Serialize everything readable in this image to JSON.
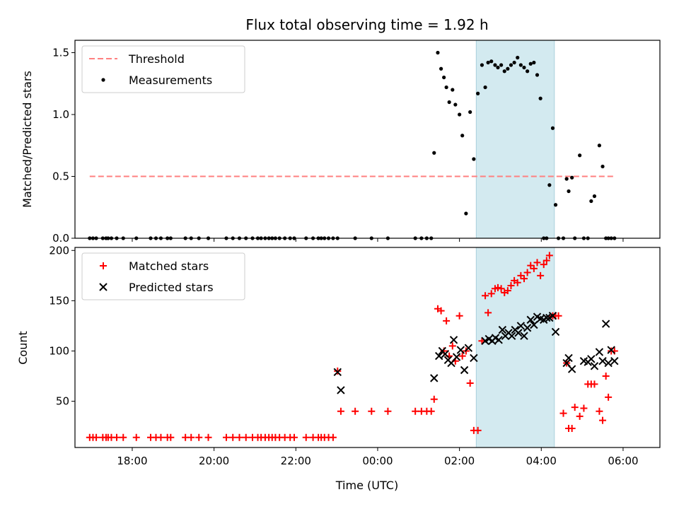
{
  "chart_data": [
    {
      "type": "scatter",
      "title": "Flux total observing time = 1.92 h",
      "ylabel": "Matched/Predicted stars",
      "xlabel": "",
      "xlim": [
        16.6,
        30.9
      ],
      "ylim": [
        0,
        1.6
      ],
      "yticks": [
        "0.0",
        "0.5",
        "1.0",
        "1.5"
      ],
      "ytick_values": [
        0,
        0.5,
        1.0,
        1.5
      ],
      "highlight": {
        "from": 26.41,
        "to": 28.32,
        "color": "#d3eaf0"
      },
      "legend": "top-left",
      "series": [
        {
          "name": "Threshold",
          "style": "dashed-line",
          "color": "#ff8080",
          "x": [
            16.96,
            29.82
          ],
          "y": [
            0.5,
            0.5
          ]
        },
        {
          "name": "Measurements",
          "style": "dot",
          "color": "#000000",
          "x": [
            16.96,
            17.04,
            17.12,
            17.28,
            17.36,
            17.41,
            17.49,
            17.62,
            17.78,
            18.1,
            18.45,
            18.58,
            18.7,
            18.86,
            18.94,
            19.3,
            19.44,
            19.63,
            19.86,
            20.3,
            20.46,
            20.62,
            20.78,
            20.94,
            21.07,
            21.15,
            21.25,
            21.34,
            21.42,
            21.5,
            21.6,
            21.73,
            21.86,
            21.96,
            22.25,
            22.42,
            22.55,
            22.62,
            22.7,
            22.8,
            22.91,
            23.02,
            23.45,
            23.85,
            24.25,
            24.92,
            25.07,
            25.2,
            25.31,
            25.38,
            25.47,
            25.55,
            25.62,
            25.68,
            25.75,
            25.83,
            25.9,
            26.0,
            26.07,
            26.16,
            26.26,
            26.35,
            26.45,
            26.55,
            26.63,
            26.7,
            26.78,
            26.87,
            26.94,
            27.02,
            27.1,
            27.18,
            27.26,
            27.34,
            27.42,
            27.5,
            27.58,
            27.66,
            27.74,
            27.82,
            27.9,
            27.98,
            28.06,
            28.13,
            28.2,
            28.28,
            28.35,
            28.42,
            28.54,
            28.62,
            28.67,
            28.75,
            28.82,
            28.94,
            29.04,
            29.14,
            29.22,
            29.3,
            29.42,
            29.5,
            29.58,
            29.64,
            29.71,
            29.79
          ],
          "y": [
            0,
            0,
            0,
            0,
            0,
            0,
            0,
            0,
            0,
            0,
            0,
            0,
            0,
            0,
            0,
            0,
            0,
            0,
            0,
            0,
            0,
            0,
            0,
            0,
            0,
            0,
            0,
            0,
            0,
            0,
            0,
            0,
            0,
            0,
            0,
            0,
            0,
            0,
            0,
            0,
            0,
            0,
            0,
            0,
            0,
            0,
            0,
            0,
            0,
            0.69,
            1.5,
            1.37,
            1.3,
            1.22,
            1.1,
            1.2,
            1.08,
            1.0,
            0.83,
            0.2,
            1.02,
            0.64,
            1.17,
            1.4,
            1.22,
            1.42,
            1.43,
            1.4,
            1.38,
            1.4,
            1.35,
            1.37,
            1.4,
            1.42,
            1.46,
            1.4,
            1.38,
            1.35,
            1.41,
            1.42,
            1.32,
            1.13,
            0,
            0,
            0.43,
            0.89,
            0.27,
            0,
            0,
            0.48,
            0.38,
            0.49,
            0,
            0.67,
            0,
            0,
            0.3,
            0.34,
            0.75,
            0.58,
            0,
            0,
            0,
            0
          ]
        }
      ]
    },
    {
      "type": "scatter",
      "title": "",
      "ylabel": "Count",
      "xlabel": "Time (UTC)",
      "xlim": [
        16.6,
        30.9
      ],
      "ylim": [
        4,
        203
      ],
      "yticks": [
        "50",
        "100",
        "150",
        "200"
      ],
      "ytick_values": [
        50,
        100,
        150,
        200
      ],
      "xticks": [
        "18:00",
        "20:00",
        "22:00",
        "00:00",
        "02:00",
        "04:00",
        "06:00"
      ],
      "xtick_values": [
        18,
        20,
        22,
        24,
        26,
        28,
        30
      ],
      "highlight": {
        "from": 26.41,
        "to": 28.32,
        "color": "#d3eaf0"
      },
      "legend": "top-left",
      "series": [
        {
          "name": "Matched stars",
          "style": "plus",
          "color": "#ff0000",
          "x": [
            16.96,
            17.04,
            17.12,
            17.28,
            17.36,
            17.41,
            17.49,
            17.62,
            17.78,
            18.1,
            18.45,
            18.58,
            18.7,
            18.86,
            18.94,
            19.3,
            19.44,
            19.63,
            19.86,
            20.3,
            20.46,
            20.62,
            20.78,
            20.94,
            21.07,
            21.15,
            21.25,
            21.34,
            21.42,
            21.5,
            21.6,
            21.73,
            21.86,
            21.96,
            22.25,
            22.42,
            22.55,
            22.62,
            22.7,
            22.8,
            22.91,
            23.02,
            23.1,
            23.45,
            23.85,
            24.25,
            24.92,
            25.07,
            25.2,
            25.31,
            25.38,
            25.47,
            25.55,
            25.62,
            25.68,
            25.75,
            25.83,
            25.9,
            26.0,
            26.07,
            26.16,
            26.26,
            26.35,
            26.45,
            26.55,
            26.63,
            26.7,
            26.78,
            26.87,
            26.94,
            27.02,
            27.1,
            27.18,
            27.26,
            27.34,
            27.42,
            27.5,
            27.58,
            27.66,
            27.74,
            27.82,
            27.9,
            27.98,
            28.06,
            28.13,
            28.2,
            28.28,
            28.35,
            28.42,
            28.54,
            28.62,
            28.67,
            28.75,
            28.82,
            28.94,
            29.04,
            29.14,
            29.22,
            29.3,
            29.42,
            29.5,
            29.58,
            29.64,
            29.71,
            29.79
          ],
          "y": [
            14,
            14,
            14,
            14,
            14,
            14,
            14,
            14,
            14,
            14,
            14,
            14,
            14,
            14,
            14,
            14,
            14,
            14,
            14,
            14,
            14,
            14,
            14,
            14,
            14,
            14,
            14,
            14,
            14,
            14,
            14,
            14,
            14,
            14,
            14,
            14,
            14,
            14,
            14,
            14,
            14,
            80,
            40,
            40,
            40,
            40,
            40,
            40,
            40,
            40,
            52,
            142,
            140,
            100,
            130,
            95,
            105,
            90,
            135,
            95,
            100,
            68,
            21,
            21,
            110,
            155,
            138,
            157,
            162,
            163,
            162,
            158,
            160,
            165,
            170,
            168,
            175,
            172,
            178,
            185,
            182,
            188,
            175,
            186,
            190,
            195,
            135,
            135,
            135,
            38,
            88,
            23,
            23,
            44,
            35,
            43,
            67,
            67,
            67,
            40,
            31,
            75,
            54,
            100,
            100
          ],
          "y_note": ""
        },
        {
          "name": "Predicted stars",
          "style": "x",
          "color": "#000000",
          "x": [
            23.02,
            23.1,
            25.38,
            25.5,
            25.58,
            25.65,
            25.72,
            25.8,
            25.86,
            25.93,
            26.03,
            26.12,
            26.22,
            26.35,
            26.63,
            26.72,
            26.8,
            26.88,
            26.96,
            27.05,
            27.12,
            27.2,
            27.28,
            27.36,
            27.44,
            27.5,
            27.58,
            27.66,
            27.74,
            27.82,
            27.9,
            27.98,
            28.06,
            28.13,
            28.2,
            28.28,
            28.35,
            28.62,
            28.67,
            28.75,
            29.04,
            29.14,
            29.22,
            29.3,
            29.42,
            29.5,
            29.58,
            29.64,
            29.71,
            29.79
          ],
          "y": [
            79,
            61,
            73,
            95,
            100,
            97,
            91,
            88,
            111,
            94,
            101,
            81,
            103,
            93,
            110,
            112,
            110,
            113,
            111,
            121,
            115,
            118,
            115,
            121,
            118,
            125,
            115,
            123,
            131,
            126,
            134,
            132,
            131,
            133,
            133,
            135,
            119,
            88,
            93,
            82,
            90,
            89,
            92,
            85,
            99,
            90,
            127,
            88,
            101,
            90
          ]
        }
      ]
    }
  ]
}
